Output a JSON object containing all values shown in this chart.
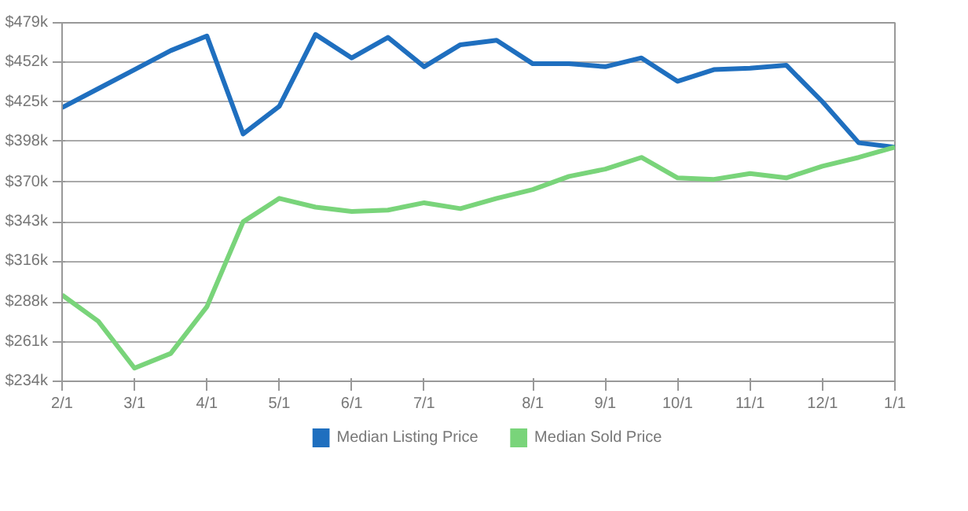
{
  "chart_data": {
    "type": "line",
    "categories": [
      "2/1",
      null,
      "3/1",
      null,
      "4/1",
      null,
      "5/1",
      null,
      "6/1",
      null,
      "7/1",
      null,
      null,
      "8/1",
      null,
      "9/1",
      null,
      "10/1",
      null,
      "11/1",
      null,
      "12/1",
      null,
      "1/1"
    ],
    "series": [
      {
        "name": "Median Listing Price",
        "color": "#1f6fbf",
        "values": [
          421,
          434,
          447,
          460,
          470,
          403,
          422,
          471,
          455,
          469,
          449,
          464,
          467,
          451,
          451,
          449,
          455,
          439,
          447,
          448,
          450,
          425,
          397,
          394
        ]
      },
      {
        "name": "Median Sold Price",
        "color": "#79d47a",
        "values": [
          293,
          275,
          243,
          253,
          285,
          343,
          359,
          353,
          350,
          351,
          356,
          352,
          359,
          365,
          374,
          379,
          387,
          373,
          372,
          376,
          373,
          381,
          387,
          394
        ]
      }
    ],
    "ylim": [
      234,
      479
    ],
    "yticks": [
      {
        "value": 234,
        "label": "$234k"
      },
      {
        "value": 261,
        "label": "$261k"
      },
      {
        "value": 288,
        "label": "$288k"
      },
      {
        "value": 316,
        "label": "$316k"
      },
      {
        "value": 343,
        "label": "$343k"
      },
      {
        "value": 370,
        "label": "$370k"
      },
      {
        "value": 398,
        "label": "$398k"
      },
      {
        "value": 425,
        "label": "$425k"
      },
      {
        "value": 452,
        "label": "$452k"
      },
      {
        "value": 479,
        "label": "$479k"
      }
    ],
    "grid": "y",
    "legend": "bottom",
    "marker": "none",
    "line_style": "solid"
  }
}
